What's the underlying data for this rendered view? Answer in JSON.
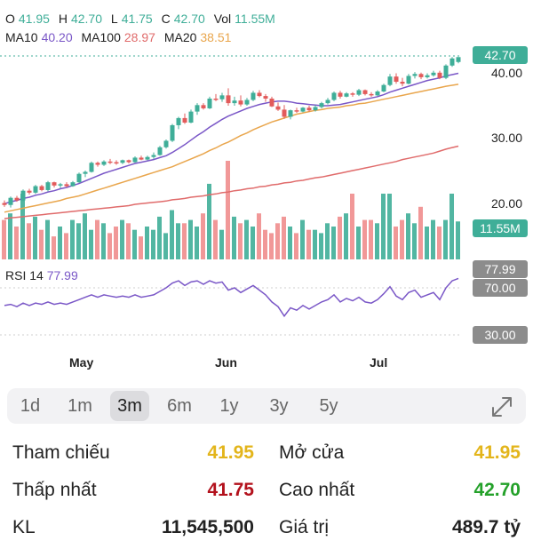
{
  "ohlc": {
    "o_label": "O",
    "o": "41.95",
    "h_label": "H",
    "h": "42.70",
    "l_label": "L",
    "l": "41.75",
    "c_label": "C",
    "c": "42.70",
    "vol_label": "Vol",
    "vol": "11.55M"
  },
  "ma": {
    "ma10_label": "MA10",
    "ma10": "40.20",
    "ma100_label": "MA100",
    "ma100": "28.97",
    "ma20_label": "MA20",
    "ma20": "38.51"
  },
  "price_axis": [
    "40.00",
    "30.00",
    "20.00"
  ],
  "price_tag": "42.70",
  "volume_tag": "11.55M",
  "rsi": {
    "label": "RSI 14",
    "value": "77.99",
    "tag": "77.99",
    "level_70": "70.00",
    "level_30": "30.00"
  },
  "months": [
    "May",
    "Jun",
    "Jul"
  ],
  "ranges": [
    {
      "label": "1d",
      "active": false
    },
    {
      "label": "1m",
      "active": false
    },
    {
      "label": "3m",
      "active": true
    },
    {
      "label": "6m",
      "active": false
    },
    {
      "label": "1y",
      "active": false
    },
    {
      "label": "3y",
      "active": false
    },
    {
      "label": "5y",
      "active": false
    }
  ],
  "expand_icon": "expand-icon",
  "stats": {
    "ref_label": "Tham chiếu",
    "ref_value": "41.95",
    "open_label": "Mở cửa",
    "open_value": "41.95",
    "low_label": "Thấp nhất",
    "low_value": "41.75",
    "high_label": "Cao nhất",
    "high_value": "42.70",
    "vol_label": "KL",
    "vol_value": "11,545,500",
    "val_label": "Giá trị",
    "val_value": "489.7 tỷ"
  },
  "colors": {
    "up": "#3fae98",
    "down": "#f08d8d",
    "ma10": "#7a57c7",
    "ma20": "#e9a64d",
    "ma100": "#e06b6b",
    "rsi": "#7a57c7",
    "tag_grey": "#8c8c8c"
  },
  "chart_data": {
    "type": "candlestick",
    "price_range": [
      14,
      44
    ],
    "candles": [
      [
        20.2,
        20.6,
        19.6,
        19.9
      ],
      [
        19.9,
        21.2,
        19.5,
        21.0
      ],
      [
        21.0,
        21.3,
        20.4,
        20.6
      ],
      [
        20.6,
        22.3,
        20.5,
        22.1
      ],
      [
        22.1,
        22.4,
        21.5,
        21.8
      ],
      [
        21.8,
        23.0,
        21.6,
        22.8
      ],
      [
        22.8,
        23.0,
        22.0,
        22.2
      ],
      [
        22.2,
        23.6,
        22.0,
        23.4
      ],
      [
        23.4,
        23.5,
        22.6,
        22.9
      ],
      [
        22.9,
        23.3,
        22.5,
        23.1
      ],
      [
        23.1,
        23.4,
        22.6,
        22.8
      ],
      [
        22.8,
        23.6,
        22.7,
        23.4
      ],
      [
        23.4,
        24.9,
        23.3,
        24.7
      ],
      [
        24.7,
        25.2,
        24.2,
        25.0
      ],
      [
        25.0,
        26.6,
        24.9,
        26.4
      ],
      [
        26.4,
        26.6,
        25.8,
        26.1
      ],
      [
        26.1,
        26.8,
        25.9,
        26.6
      ],
      [
        26.6,
        27.0,
        26.2,
        26.5
      ],
      [
        26.5,
        26.8,
        26.1,
        26.4
      ],
      [
        26.4,
        26.9,
        26.2,
        26.8
      ],
      [
        26.8,
        26.9,
        26.3,
        26.5
      ],
      [
        26.5,
        27.4,
        26.4,
        27.2
      ],
      [
        27.2,
        27.5,
        26.8,
        26.9
      ],
      [
        26.9,
        27.5,
        26.8,
        27.3
      ],
      [
        27.3,
        28.0,
        27.0,
        27.6
      ],
      [
        27.6,
        29.0,
        27.5,
        28.8
      ],
      [
        28.8,
        30.0,
        28.6,
        29.8
      ],
      [
        29.8,
        32.4,
        29.6,
        32.2
      ],
      [
        32.2,
        33.5,
        31.6,
        33.3
      ],
      [
        33.3,
        34.0,
        32.4,
        32.6
      ],
      [
        32.6,
        34.6,
        32.5,
        34.3
      ],
      [
        34.3,
        35.6,
        33.8,
        35.3
      ],
      [
        35.3,
        35.6,
        34.6,
        34.8
      ],
      [
        34.8,
        36.6,
        34.7,
        36.3
      ],
      [
        36.3,
        37.0,
        35.9,
        36.2
      ],
      [
        36.2,
        37.2,
        35.8,
        36.8
      ],
      [
        36.8,
        37.9,
        35.2,
        35.6
      ],
      [
        35.6,
        36.6,
        35.2,
        36.0
      ],
      [
        36.0,
        36.8,
        35.1,
        35.4
      ],
      [
        35.4,
        36.4,
        35.2,
        36.1
      ],
      [
        36.1,
        37.5,
        35.9,
        37.2
      ],
      [
        37.2,
        37.6,
        36.5,
        36.7
      ],
      [
        36.7,
        37.0,
        35.8,
        36.3
      ],
      [
        36.3,
        36.6,
        35.0,
        35.1
      ],
      [
        35.1,
        35.7,
        34.4,
        34.6
      ],
      [
        34.6,
        35.3,
        33.2,
        33.5
      ],
      [
        33.5,
        34.6,
        33.1,
        34.5
      ],
      [
        34.5,
        34.9,
        34.1,
        34.3
      ],
      [
        34.3,
        35.0,
        34.2,
        34.9
      ],
      [
        34.9,
        35.2,
        34.3,
        34.5
      ],
      [
        34.5,
        35.3,
        34.3,
        35.0
      ],
      [
        35.0,
        35.8,
        34.8,
        35.6
      ],
      [
        35.6,
        36.4,
        35.4,
        36.1
      ],
      [
        36.1,
        37.4,
        35.9,
        37.2
      ],
      [
        37.2,
        37.5,
        36.3,
        36.6
      ],
      [
        36.6,
        37.3,
        36.5,
        37.1
      ],
      [
        37.1,
        37.3,
        36.6,
        36.9
      ],
      [
        36.9,
        37.8,
        36.7,
        37.6
      ],
      [
        37.6,
        37.7,
        36.8,
        37.0
      ],
      [
        37.0,
        37.3,
        36.6,
        36.8
      ],
      [
        36.8,
        37.6,
        36.7,
        37.4
      ],
      [
        37.4,
        38.6,
        37.3,
        38.4
      ],
      [
        38.4,
        40.1,
        38.2,
        39.7
      ],
      [
        39.7,
        40.2,
        38.6,
        38.9
      ],
      [
        38.9,
        39.5,
        38.2,
        38.6
      ],
      [
        38.6,
        40.1,
        38.5,
        39.8
      ],
      [
        39.8,
        40.4,
        39.4,
        40.1
      ],
      [
        40.1,
        40.3,
        39.3,
        39.6
      ],
      [
        39.6,
        40.2,
        39.4,
        39.9
      ],
      [
        39.9,
        40.6,
        39.7,
        40.3
      ],
      [
        40.3,
        40.6,
        39.3,
        39.5
      ],
      [
        39.5,
        41.6,
        39.3,
        41.4
      ],
      [
        41.4,
        42.7,
        41.2,
        42.5
      ],
      [
        41.95,
        42.7,
        41.75,
        42.7
      ]
    ],
    "volume_range": [
      0,
      35
    ],
    "volumes": [
      12,
      14,
      10,
      20,
      11,
      13,
      9,
      12,
      7,
      10,
      8,
      12,
      11,
      14,
      9,
      12,
      11,
      8,
      10,
      12,
      11,
      9,
      7,
      10,
      9,
      13,
      8,
      15,
      11,
      11,
      12,
      10,
      14,
      23,
      12,
      9,
      30,
      13,
      11,
      12,
      10,
      14,
      9,
      8,
      11,
      13,
      10,
      8,
      12,
      9,
      9,
      8,
      11,
      10,
      13,
      14,
      20,
      10,
      12,
      12,
      11,
      20,
      20,
      10,
      12,
      14,
      11,
      16,
      10,
      12,
      10,
      12,
      20,
      11.55
    ],
    "ma10": [
      20.1,
      20.4,
      20.6,
      20.9,
      21.1,
      21.4,
      21.6,
      21.9,
      22.1,
      22.4,
      22.6,
      22.9,
      23.2,
      23.6,
      24.0,
      24.4,
      24.8,
      25.1,
      25.4,
      25.7,
      26.0,
      26.3,
      26.5,
      26.7,
      26.9,
      27.2,
      27.5,
      28.0,
      28.6,
      29.2,
      29.9,
      30.6,
      31.2,
      31.9,
      32.5,
      33.1,
      33.6,
      34.0,
      34.4,
      34.8,
      35.1,
      35.4,
      35.6,
      35.8,
      35.9,
      35.9,
      35.8,
      35.6,
      35.5,
      35.4,
      35.3,
      35.2,
      35.2,
      35.3,
      35.4,
      35.6,
      35.8,
      36.0,
      36.2,
      36.4,
      36.6,
      36.9,
      37.3,
      37.6,
      37.9,
      38.2,
      38.5,
      38.8,
      39.1,
      39.3,
      39.5,
      39.8,
      40.0,
      40.2
    ],
    "ma20": [
      18.8,
      19.0,
      19.2,
      19.4,
      19.6,
      19.8,
      20.0,
      20.2,
      20.4,
      20.6,
      20.9,
      21.1,
      21.3,
      21.6,
      21.9,
      22.2,
      22.5,
      22.8,
      23.1,
      23.4,
      23.7,
      24.0,
      24.3,
      24.6,
      24.9,
      25.2,
      25.5,
      25.8,
      26.2,
      26.6,
      27.0,
      27.4,
      27.8,
      28.3,
      28.7,
      29.2,
      29.6,
      30.1,
      30.6,
      31.0,
      31.5,
      31.9,
      32.3,
      32.7,
      33.0,
      33.3,
      33.6,
      33.9,
      34.1,
      34.3,
      34.5,
      34.6,
      34.8,
      34.9,
      35.0,
      35.2,
      35.3,
      35.5,
      35.6,
      35.8,
      36.0,
      36.2,
      36.4,
      36.6,
      36.8,
      37.0,
      37.2,
      37.4,
      37.6,
      37.8,
      38.0,
      38.2,
      38.35,
      38.51
    ],
    "ma100": [
      17.8,
      17.9,
      18.0,
      18.1,
      18.2,
      18.3,
      18.4,
      18.5,
      18.6,
      18.7,
      18.8,
      18.9,
      19.0,
      19.1,
      19.2,
      19.3,
      19.4,
      19.5,
      19.6,
      19.7,
      19.8,
      20.0,
      20.1,
      20.2,
      20.3,
      20.4,
      20.5,
      20.7,
      20.8,
      20.9,
      21.1,
      21.2,
      21.3,
      21.5,
      21.6,
      21.8,
      21.9,
      22.1,
      22.2,
      22.4,
      22.5,
      22.7,
      22.8,
      23.0,
      23.1,
      23.3,
      23.4,
      23.6,
      23.7,
      23.9,
      24.1,
      24.2,
      24.4,
      24.6,
      24.8,
      25.0,
      25.2,
      25.4,
      25.6,
      25.8,
      26.0,
      26.2,
      26.4,
      26.6,
      26.9,
      27.1,
      27.3,
      27.5,
      27.7,
      27.9,
      28.2,
      28.5,
      28.75,
      28.97
    ],
    "rsi": [
      55,
      56,
      54,
      57,
      55,
      57,
      56,
      58,
      56,
      57,
      56,
      58,
      60,
      62,
      64,
      62,
      64,
      63,
      62,
      63,
      62,
      64,
      62,
      63,
      64,
      67,
      70,
      74,
      76,
      72,
      75,
      76,
      73,
      76,
      74,
      75,
      68,
      70,
      66,
      69,
      72,
      68,
      64,
      58,
      54,
      46,
      53,
      51,
      55,
      52,
      55,
      58,
      60,
      64,
      58,
      61,
      59,
      62,
      58,
      57,
      60,
      65,
      71,
      63,
      60,
      66,
      68,
      62,
      64,
      66,
      60,
      70,
      76,
      77.99
    ]
  }
}
